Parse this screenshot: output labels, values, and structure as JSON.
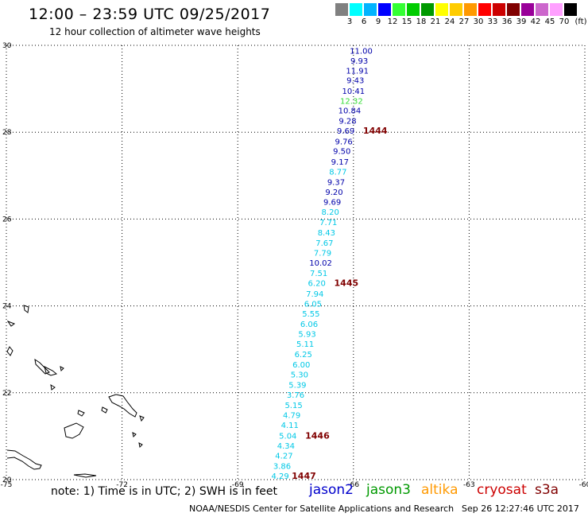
{
  "header": {
    "title": "12:00 – 23:59 UTC 09/25/2017",
    "subtitle": "12 hour collection of altimeter wave heights"
  },
  "scale": {
    "unit": "(ft)",
    "bins": [
      {
        "color": "#808080",
        "label": "3"
      },
      {
        "color": "#00ffff",
        "label": "6"
      },
      {
        "color": "#00b4ff",
        "label": "9"
      },
      {
        "color": "#0000ff",
        "label": "12"
      },
      {
        "color": "#33ff33",
        "label": "15"
      },
      {
        "color": "#00cc00",
        "label": "18"
      },
      {
        "color": "#009900",
        "label": "21"
      },
      {
        "color": "#ffff00",
        "label": "24"
      },
      {
        "color": "#ffcc00",
        "label": "27"
      },
      {
        "color": "#ff9900",
        "label": "30"
      },
      {
        "color": "#ff0000",
        "label": "33"
      },
      {
        "color": "#cc0000",
        "label": "36"
      },
      {
        "color": "#800000",
        "label": "39"
      },
      {
        "color": "#990099",
        "label": "42"
      },
      {
        "color": "#cc66cc",
        "label": "45"
      },
      {
        "color": "#ffa0ff",
        "label": "70"
      },
      {
        "color": "#000000",
        "label": ""
      }
    ]
  },
  "map": {
    "lon_range": [
      -75,
      -60
    ],
    "lat_range": [
      20,
      30
    ],
    "lon_ticks": [
      -75,
      -72,
      -69,
      -66,
      -63,
      -60
    ],
    "lon_tick_labels": [
      "-75",
      "-72",
      "-69",
      "-66",
      "-63",
      "-60"
    ],
    "lat_ticks": [
      20,
      22,
      24,
      26,
      28,
      30
    ],
    "lat_tick_labels": [
      "20",
      "22",
      "24",
      "26",
      "28",
      "30"
    ],
    "colors": {
      "dark_blue": "#0000aa",
      "cyan": "#00c8e6",
      "green": "#33dd33",
      "time": "#800000"
    },
    "track": [
      {
        "lon": -65.8,
        "lat": 29.88,
        "value": "11.00",
        "color": "dark_blue"
      },
      {
        "lon": -65.85,
        "lat": 29.65,
        "value": "9.93",
        "color": "dark_blue"
      },
      {
        "lon": -65.9,
        "lat": 29.42,
        "value": "11.91",
        "color": "dark_blue"
      },
      {
        "lon": -65.95,
        "lat": 29.2,
        "value": "9.43",
        "color": "dark_blue"
      },
      {
        "lon": -66.0,
        "lat": 28.96,
        "value": "10.41",
        "color": "dark_blue"
      },
      {
        "lon": -66.05,
        "lat": 28.73,
        "value": "12.32",
        "color": "green"
      },
      {
        "lon": -66.1,
        "lat": 28.51,
        "value": "10.84",
        "color": "dark_blue"
      },
      {
        "lon": -66.15,
        "lat": 28.27,
        "value": "9.28",
        "color": "dark_blue"
      },
      {
        "lon": -66.2,
        "lat": 28.04,
        "value": "9.69",
        "color": "dark_blue"
      },
      {
        "lon": -66.25,
        "lat": 27.79,
        "value": "9.76",
        "color": "dark_blue"
      },
      {
        "lon": -66.3,
        "lat": 27.57,
        "value": "9.50",
        "color": "dark_blue"
      },
      {
        "lon": -66.35,
        "lat": 27.33,
        "value": "9.17",
        "color": "dark_blue"
      },
      {
        "lon": -66.4,
        "lat": 27.1,
        "value": "8.77",
        "color": "cyan"
      },
      {
        "lon": -66.45,
        "lat": 26.86,
        "value": "9.37",
        "color": "dark_blue"
      },
      {
        "lon": -66.5,
        "lat": 26.63,
        "value": "9.20",
        "color": "dark_blue"
      },
      {
        "lon": -66.55,
        "lat": 26.4,
        "value": "9.69",
        "color": "dark_blue"
      },
      {
        "lon": -66.6,
        "lat": 26.17,
        "value": "8.20",
        "color": "cyan"
      },
      {
        "lon": -66.65,
        "lat": 25.93,
        "value": "7.71",
        "color": "cyan"
      },
      {
        "lon": -66.7,
        "lat": 25.7,
        "value": "8.43",
        "color": "cyan"
      },
      {
        "lon": -66.75,
        "lat": 25.46,
        "value": "7.67",
        "color": "cyan"
      },
      {
        "lon": -66.8,
        "lat": 25.23,
        "value": "7.79",
        "color": "cyan"
      },
      {
        "lon": -66.85,
        "lat": 25.0,
        "value": "10.02",
        "color": "dark_blue"
      },
      {
        "lon": -66.9,
        "lat": 24.76,
        "value": "7.51",
        "color": "cyan"
      },
      {
        "lon": -66.95,
        "lat": 24.53,
        "value": "6.20",
        "color": "cyan"
      },
      {
        "lon": -67.0,
        "lat": 24.29,
        "value": "7.94",
        "color": "cyan"
      },
      {
        "lon": -67.05,
        "lat": 24.06,
        "value": "6.05",
        "color": "cyan"
      },
      {
        "lon": -67.1,
        "lat": 23.83,
        "value": "5.55",
        "color": "cyan"
      },
      {
        "lon": -67.15,
        "lat": 23.59,
        "value": "6.06",
        "color": "cyan"
      },
      {
        "lon": -67.2,
        "lat": 23.36,
        "value": "5.93",
        "color": "cyan"
      },
      {
        "lon": -67.25,
        "lat": 23.13,
        "value": "5.11",
        "color": "cyan"
      },
      {
        "lon": -67.3,
        "lat": 22.89,
        "value": "6.25",
        "color": "cyan"
      },
      {
        "lon": -67.35,
        "lat": 22.66,
        "value": "6.00",
        "color": "cyan"
      },
      {
        "lon": -67.4,
        "lat": 22.43,
        "value": "5.30",
        "color": "cyan"
      },
      {
        "lon": -67.45,
        "lat": 22.19,
        "value": "5.39",
        "color": "cyan"
      },
      {
        "lon": -67.5,
        "lat": 21.96,
        "value": "3.76",
        "color": "cyan"
      },
      {
        "lon": -67.55,
        "lat": 21.72,
        "value": "5.15",
        "color": "cyan"
      },
      {
        "lon": -67.6,
        "lat": 21.49,
        "value": "4.79",
        "color": "cyan"
      },
      {
        "lon": -67.65,
        "lat": 21.26,
        "value": "4.11",
        "color": "cyan"
      },
      {
        "lon": -67.7,
        "lat": 21.02,
        "value": "5.04",
        "color": "cyan"
      },
      {
        "lon": -67.75,
        "lat": 20.79,
        "value": "4.34",
        "color": "cyan"
      },
      {
        "lon": -67.8,
        "lat": 20.56,
        "value": "4.27",
        "color": "cyan"
      },
      {
        "lon": -67.85,
        "lat": 20.32,
        "value": "3.86",
        "color": "cyan"
      },
      {
        "lon": -67.9,
        "lat": 20.09,
        "value": "4.29",
        "color": "cyan"
      }
    ],
    "time_labels": [
      {
        "lon": -65.75,
        "lat": 28.04,
        "text": "1444"
      },
      {
        "lon": -66.5,
        "lat": 24.53,
        "text": "1445"
      },
      {
        "lon": -67.25,
        "lat": 21.02,
        "text": "1446"
      },
      {
        "lon": -67.6,
        "lat": 20.09,
        "text": "1447"
      }
    ]
  },
  "footer": {
    "note": "note: 1) Time is in UTC; 2) SWH is in feet",
    "satellites": [
      {
        "name": "jason2",
        "color": "#0000cc"
      },
      {
        "name": "jason3",
        "color": "#009900"
      },
      {
        "name": "altika",
        "color": "#ff9900"
      },
      {
        "name": "cryosat",
        "color": "#cc0000"
      },
      {
        "name": "s3a",
        "color": "#800000"
      }
    ],
    "credit": "NOAA/NESDIS Center for Satellite Applications and Research",
    "timestamp": "Sep 26 12:27:46 UTC 2017"
  }
}
